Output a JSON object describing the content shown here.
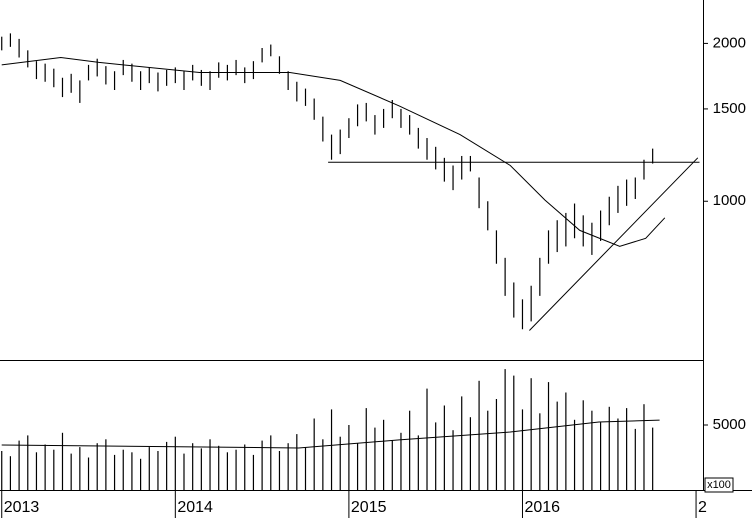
{
  "chart_data": [
    {
      "type": "ohlc",
      "x": [
        2013,
        2013.05,
        2013.1,
        2013.15,
        2013.2,
        2013.25,
        2013.3,
        2013.35,
        2013.4,
        2013.45,
        2013.5,
        2013.55,
        2013.6,
        2013.65,
        2013.7,
        2013.75,
        2013.8,
        2013.85,
        2013.9,
        2013.95,
        2014,
        2014.05,
        2014.1,
        2014.15,
        2014.2,
        2014.25,
        2014.3,
        2014.35,
        2014.4,
        2014.45,
        2014.5,
        2014.55,
        2014.6,
        2014.65,
        2014.7,
        2014.75,
        2014.8,
        2014.85,
        2014.9,
        2014.95,
        2015,
        2015.05,
        2015.1,
        2015.15,
        2015.2,
        2015.25,
        2015.3,
        2015.35,
        2015.4,
        2015.45,
        2015.5,
        2015.55,
        2015.6,
        2015.65,
        2015.7,
        2015.75,
        2015.8,
        2015.85,
        2015.9,
        2015.95,
        2016,
        2016.05,
        2016.1,
        2016.15,
        2016.2,
        2016.25,
        2016.3,
        2016.35,
        2016.4,
        2016.45,
        2016.5,
        2016.55,
        2016.6,
        2016.65,
        2016.7,
        2016.75
      ],
      "high": [
        2060,
        2090,
        2040,
        1940,
        1850,
        1830,
        1790,
        1720,
        1750,
        1700,
        1820,
        1870,
        1810,
        1770,
        1860,
        1830,
        1770,
        1800,
        1760,
        1780,
        1800,
        1770,
        1820,
        1780,
        1770,
        1840,
        1820,
        1860,
        1800,
        1850,
        1960,
        1990,
        1890,
        1770,
        1690,
        1640,
        1570,
        1450,
        1340,
        1370,
        1440,
        1530,
        1540,
        1460,
        1500,
        1560,
        1500,
        1460,
        1380,
        1320,
        1270,
        1210,
        1170,
        1220,
        1220,
        1110,
        1000,
        880,
        780,
        700,
        650,
        690,
        780,
        880,
        920,
        950,
        990,
        940,
        910,
        960,
        1020,
        1070,
        1100,
        1110,
        1200,
        1260
      ],
      "low": [
        1940,
        1970,
        1880,
        1800,
        1710,
        1690,
        1650,
        1580,
        1610,
        1540,
        1700,
        1730,
        1670,
        1630,
        1740,
        1690,
        1630,
        1680,
        1620,
        1660,
        1680,
        1630,
        1700,
        1660,
        1630,
        1720,
        1700,
        1740,
        1680,
        1710,
        1840,
        1890,
        1750,
        1630,
        1550,
        1520,
        1430,
        1300,
        1200,
        1230,
        1320,
        1390,
        1420,
        1340,
        1380,
        1440,
        1380,
        1340,
        1260,
        1200,
        1150,
        1090,
        1050,
        1100,
        1140,
        970,
        880,
        760,
        660,
        600,
        570,
        590,
        660,
        760,
        800,
        820,
        850,
        820,
        790,
        840,
        900,
        950,
        980,
        1010,
        1100,
        1180
      ],
      "moving_average": {
        "x": [
          2013,
          2013.34,
          2013.56,
          2014.14,
          2014.66,
          2014.95,
          2015.29,
          2015.64,
          2015.93,
          2016.13,
          2016.33,
          2016.56,
          2016.71,
          2016.82
        ],
        "values": [
          1820,
          1880,
          1840,
          1760,
          1760,
          1700,
          1520,
          1340,
          1170,
          1005,
          880,
          820,
          850,
          930
        ]
      },
      "lines": [
        {
          "x": [
            2014.88,
            2017.02
          ],
          "y": [
            1187,
            1187
          ]
        },
        {
          "x": [
            2016.04,
            2017.01
          ],
          "y": [
            567,
            1210
          ]
        }
      ],
      "color": "#000000",
      "log_scale": true,
      "xlim": [
        2012.99,
        2017.04
      ],
      "xticks": [
        2013,
        2014,
        2015,
        2016,
        {
          "value": 2017,
          "label": "2"
        }
      ],
      "ylim": [
        498,
        2420
      ],
      "yticks": [
        2000,
        1500,
        1000
      ]
    },
    {
      "type": "bar",
      "x": [
        2013,
        2013.05,
        2013.1,
        2013.15,
        2013.2,
        2013.25,
        2013.3,
        2013.35,
        2013.4,
        2013.45,
        2013.5,
        2013.55,
        2013.6,
        2013.65,
        2013.7,
        2013.75,
        2013.8,
        2013.85,
        2013.9,
        2013.95,
        2014,
        2014.05,
        2014.1,
        2014.15,
        2014.2,
        2014.25,
        2014.3,
        2014.35,
        2014.4,
        2014.45,
        2014.5,
        2014.55,
        2014.6,
        2014.65,
        2014.7,
        2014.75,
        2014.8,
        2014.85,
        2014.9,
        2014.95,
        2015,
        2015.05,
        2015.1,
        2015.15,
        2015.2,
        2015.25,
        2015.3,
        2015.35,
        2015.4,
        2015.45,
        2015.5,
        2015.55,
        2015.6,
        2015.65,
        2015.7,
        2015.75,
        2015.8,
        2015.85,
        2015.9,
        2015.95,
        2016,
        2016.05,
        2016.1,
        2016.15,
        2016.2,
        2016.25,
        2016.3,
        2016.35,
        2016.4,
        2016.45,
        2016.5,
        2016.55,
        2016.6,
        2016.65,
        2016.7,
        2016.75
      ],
      "values": [
        3000,
        2600,
        3800,
        4200,
        2900,
        3500,
        3100,
        4400,
        2800,
        3300,
        2500,
        3600,
        3900,
        2700,
        3100,
        2900,
        2400,
        3300,
        3000,
        3700,
        4100,
        2800,
        3600,
        3200,
        3900,
        3400,
        2900,
        3100,
        3500,
        2700,
        3800,
        4200,
        3000,
        3600,
        4300,
        3300,
        5500,
        3900,
        6200,
        4100,
        5000,
        3600,
        6300,
        4800,
        5400,
        3800,
        4400,
        6100,
        4200,
        7800,
        5200,
        6500,
        4600,
        7200,
        5600,
        8400,
        6100,
        7000,
        9300,
        8800,
        6200,
        8600,
        5900,
        8300,
        6800,
        7500,
        5400,
        6900,
        6100,
        5200,
        6400,
        5500,
        6300,
        4700,
        6600,
        4800
      ],
      "moving_average": {
        "x": [
          2013,
          2014.71,
          2015.29,
          2015.93,
          2016.44,
          2016.79
        ],
        "values": [
          3460,
          3230,
          3850,
          4460,
          5230,
          5380
        ]
      },
      "color": "#000000",
      "xlim": [
        2012.99,
        2017.04
      ],
      "ylim": [
        0,
        10000
      ],
      "yticks": [
        5000
      ],
      "annotation": "x100"
    }
  ]
}
